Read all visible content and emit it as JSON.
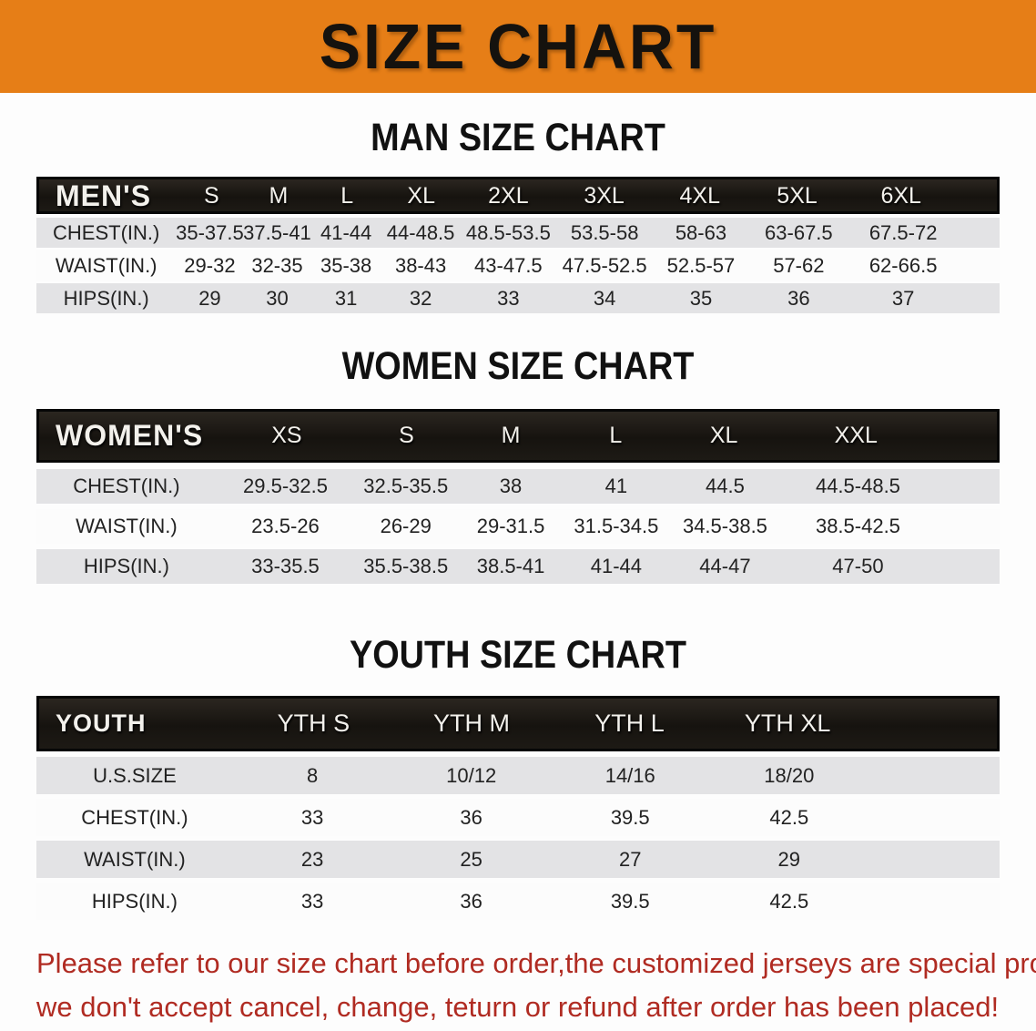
{
  "banner": {
    "title": "SIZE CHART"
  },
  "colors": {
    "banner-bg": "#E67E17",
    "band-bg": "#1C1914",
    "row-gray": "#E3E3E5",
    "row-white": "#FCFCFC",
    "footer-red": "#B02B22"
  },
  "sections": {
    "men": {
      "heading": "MAN SIZE CHART",
      "header": [
        "MEN'S",
        "S",
        "M",
        "L",
        "XL",
        "2XL",
        "3XL",
        "4XL",
        "5XL",
        "6XL"
      ],
      "rows": [
        [
          "CHEST(IN.)",
          "35-37.5",
          "37.5-41",
          "41-44",
          "44-48.5",
          "48.5-53.5",
          "53.5-58",
          "58-63",
          "63-67.5",
          "67.5-72"
        ],
        [
          "WAIST(IN.)",
          "29-32",
          "32-35",
          "35-38",
          "38-43",
          "43-47.5",
          "47.5-52.5",
          "52.5-57",
          "57-62",
          "62-66.5"
        ],
        [
          "HIPS(IN.)",
          "29",
          "30",
          "31",
          "32",
          "33",
          "34",
          "35",
          "36",
          "37"
        ]
      ]
    },
    "women": {
      "heading": "WOMEN SIZE CHART",
      "header": [
        "WOMEN'S",
        "XS",
        "S",
        "M",
        "L",
        "XL",
        "XXL"
      ],
      "rows": [
        [
          "CHEST(IN.)",
          "29.5-32.5",
          "32.5-35.5",
          "38",
          "41",
          "44.5",
          "44.5-48.5"
        ],
        [
          "WAIST(IN.)",
          "23.5-26",
          "26-29",
          "29-31.5",
          "31.5-34.5",
          "34.5-38.5",
          "38.5-42.5"
        ],
        [
          "HIPS(IN.)",
          "33-35.5",
          "35.5-38.5",
          "38.5-41",
          "41-44",
          "44-47",
          "47-50"
        ]
      ]
    },
    "youth": {
      "heading": "YOUTH SIZE CHART",
      "header": [
        "YOUTH",
        "YTH S",
        "YTH M",
        "YTH L",
        "YTH XL"
      ],
      "rows": [
        [
          "U.S.SIZE",
          "8",
          "10/12",
          "14/16",
          "18/20"
        ],
        [
          "CHEST(IN.)",
          "33",
          "36",
          "39.5",
          "42.5"
        ],
        [
          "WAIST(IN.)",
          "23",
          "25",
          "27",
          "29"
        ],
        [
          "HIPS(IN.)",
          "33",
          "36",
          "39.5",
          "42.5"
        ]
      ]
    }
  },
  "footer": {
    "line1": "Please refer to our size chart before order,the customized jerseys are special products,",
    "line2": "we don't accept cancel, change, teturn or refund after order has been placed!"
  }
}
